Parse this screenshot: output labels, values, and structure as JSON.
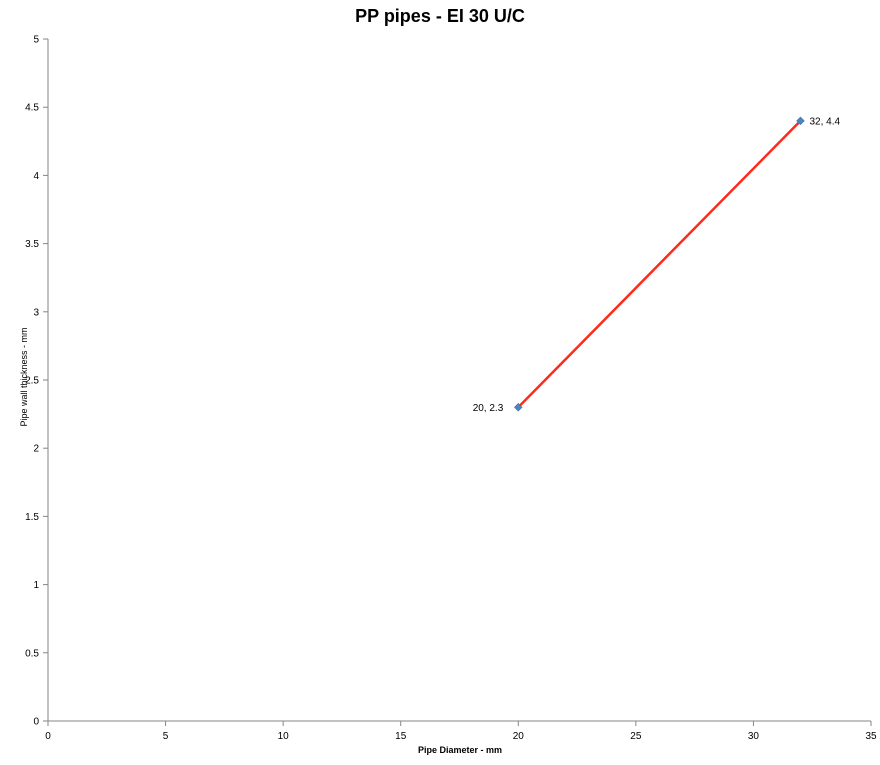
{
  "chart_data": {
    "type": "scatter",
    "title": "PP pipes - EI 30 U/C",
    "xlabel": "Pipe Diameter - mm",
    "ylabel": "Pipe wall thickness - mm",
    "xlim": [
      0,
      35
    ],
    "ylim": [
      0,
      5
    ],
    "x_ticks": [
      0,
      5,
      10,
      15,
      20,
      25,
      30,
      35
    ],
    "y_ticks": [
      0,
      0.5,
      1,
      1.5,
      2,
      2.5,
      3,
      3.5,
      4,
      4.5,
      5
    ],
    "grid": false,
    "legend": "none",
    "series": [
      {
        "x": [
          20,
          32
        ],
        "y": [
          2.3,
          4.4
        ],
        "line_color": "#ff2a1a",
        "marker_color": "#4f81bd",
        "marker": "diamond",
        "point_labels": [
          "20, 2.3",
          "32, 4.4"
        ]
      }
    ]
  }
}
